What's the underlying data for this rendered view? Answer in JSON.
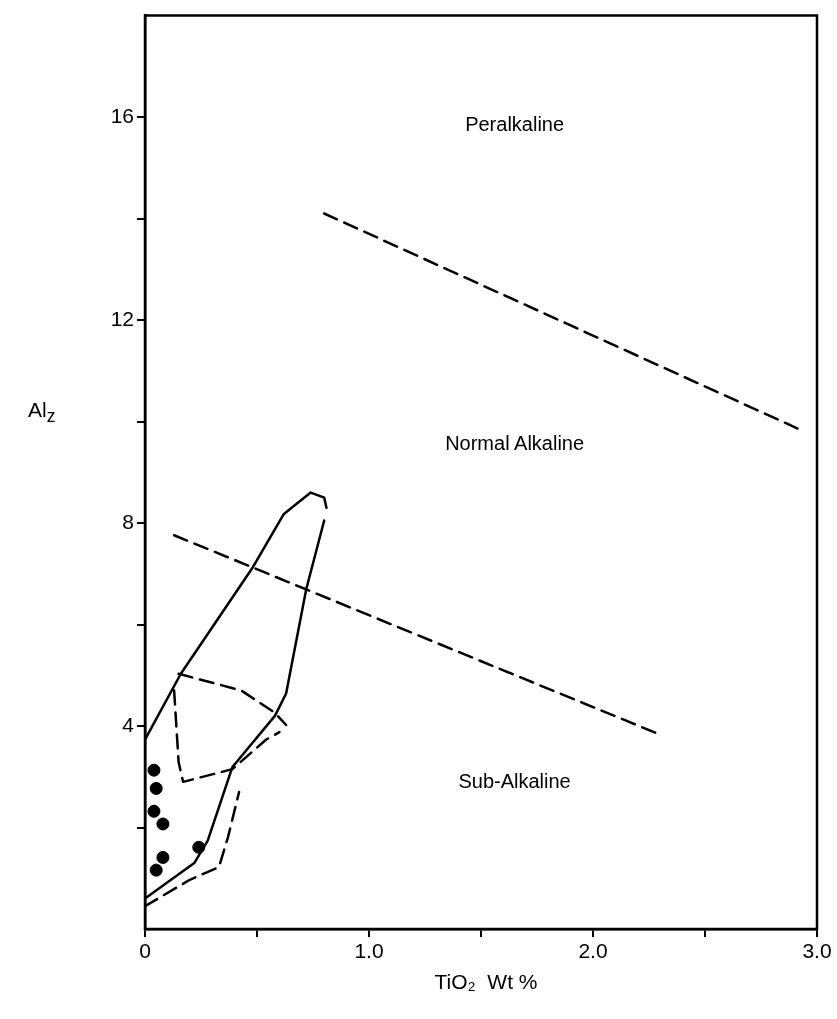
{
  "chart_data": {
    "type": "line",
    "xlabel": "TiO₂  Wt %",
    "ylabel": "Al$_{z}$",
    "xlim": [
      0,
      3
    ],
    "ylim": [
      0,
      18
    ],
    "xticks": [
      0,
      {
        "value": 0.5,
        "label": null
      },
      {
        "value": 1,
        "label": "1.0"
      },
      {
        "value": 1.5,
        "label": null
      },
      {
        "value": 2,
        "label": "2.0"
      },
      {
        "value": 2.5,
        "label": null
      },
      {
        "value": 3,
        "label": "3.0"
      }
    ],
    "yticks": [
      {
        "value": 2,
        "label": null
      },
      4,
      {
        "value": 6,
        "label": null
      },
      8,
      {
        "value": 10,
        "label": null
      },
      12,
      {
        "value": 14,
        "label": null
      },
      16
    ],
    "grid": false,
    "annotations": [
      "Peralkaline",
      "Normal Alkaline",
      "Sub-Alkaline"
    ],
    "series": [
      {
        "line_style": "dashed",
        "marker": "none",
        "color": "#000000",
        "x": [
          0.8,
          2.92
        ],
        "values": [
          14.1,
          9.85
        ]
      },
      {
        "type": "line",
        "line_style": "dashed",
        "marker": "none",
        "color": "#000000",
        "x": [
          0.13,
          2.3
        ],
        "values": [
          7.76,
          3.83
        ]
      },
      {
        "type": "line",
        "line_style": "solid",
        "marker": "none",
        "color": "#000000",
        "x": [
          0,
          0.16,
          0.48,
          0.62,
          0.74,
          0.8,
          0.81
        ],
        "values": [
          3.73,
          5.03,
          7.12,
          8.18,
          8.6,
          8.5,
          8.3
        ]
      },
      {
        "type": "line",
        "line_style": "solid",
        "marker": "none",
        "color": "#000000",
        "x": [
          0,
          0.22,
          0.28,
          0.39,
          0.58,
          0.63,
          0.72,
          0.8
        ],
        "values": [
          0.6,
          1.3,
          1.74,
          3.19,
          4.2,
          4.64,
          6.7,
          8.05
        ]
      },
      {
        "type": "line",
        "line_style": "dashed",
        "marker": "none",
        "color": "#000000",
        "x": [
          0.15,
          0.43,
          0.58,
          0.63
        ],
        "values": [
          5.03,
          4.7,
          4.26,
          4.02
        ]
      },
      {
        "type": "line",
        "line_style": "dashed",
        "marker": "none",
        "color": "#000000",
        "x": [
          0.13,
          0.15,
          0.17,
          0.39,
          0.54,
          0.6
        ],
        "values": [
          4.7,
          3.29,
          2.9,
          3.15,
          3.73,
          3.88
        ]
      },
      {
        "type": "line",
        "line_style": "dashed",
        "marker": "none",
        "color": "#000000",
        "x": [
          0,
          0.2,
          0.33,
          0.37,
          0.42
        ],
        "values": [
          0.45,
          0.97,
          1.22,
          1.8,
          2.7
        ]
      },
      {
        "type": "scatter",
        "marker": "circle",
        "color": "#000000",
        "x": [
          0.04,
          0.05,
          0.04,
          0.08,
          0.24,
          0.08,
          0.05
        ],
        "values": [
          3.13,
          2.77,
          2.32,
          2.07,
          1.61,
          1.41,
          1.16
        ]
      }
    ]
  }
}
